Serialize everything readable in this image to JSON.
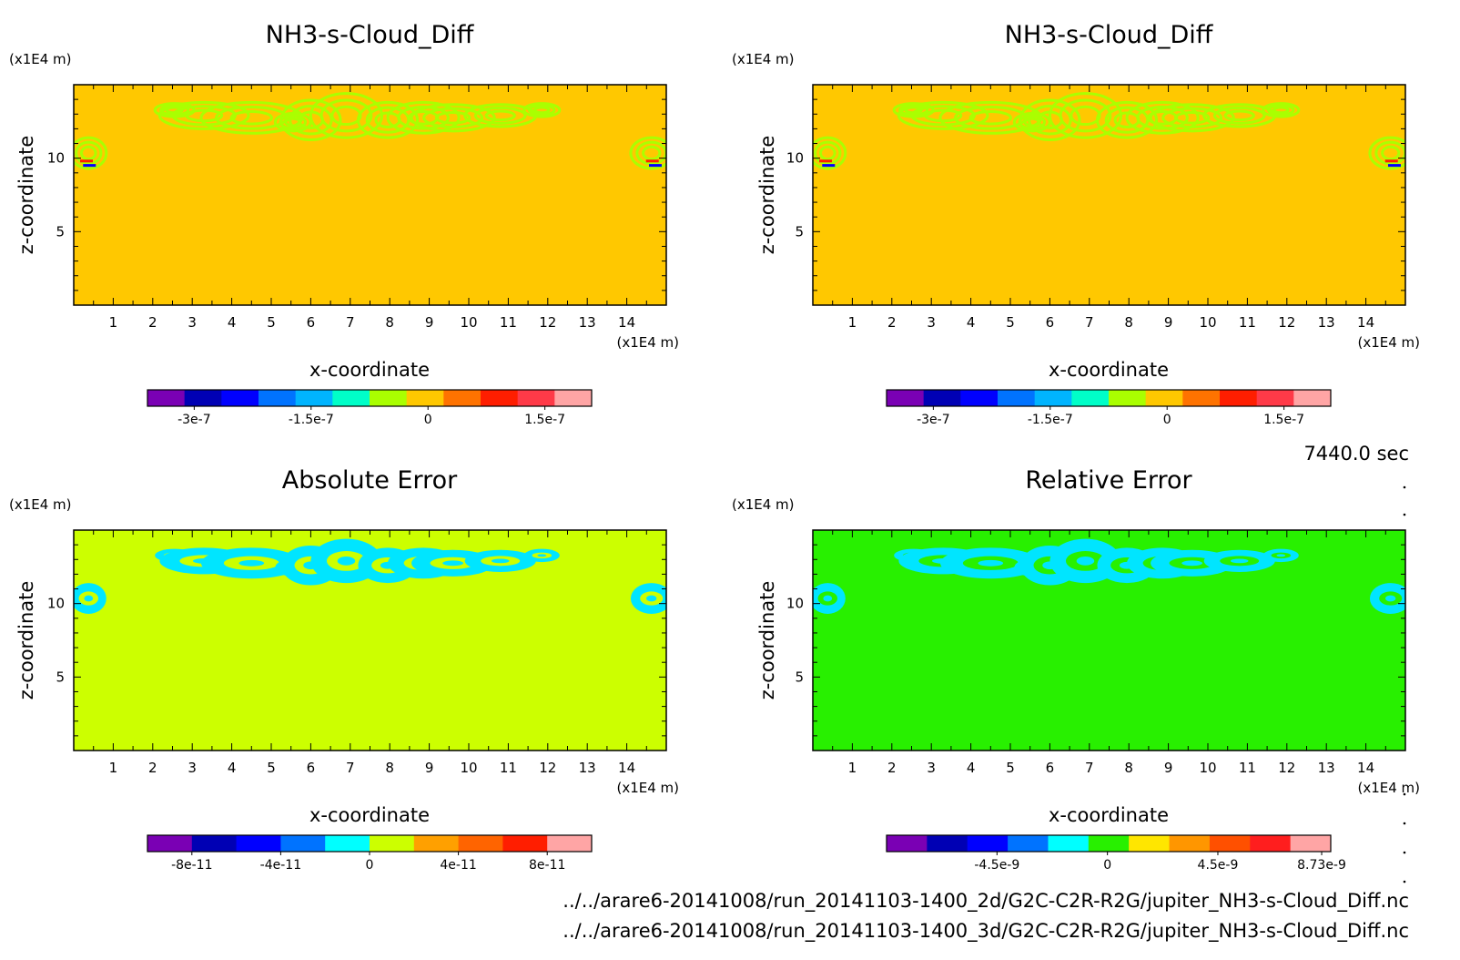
{
  "footer": {
    "path_2d": "../../arare6-20141008/run_20141103-1400_2d/G2C-C2R-R2G/jupiter_NH3-s-Cloud_Diff.nc",
    "path_3d": "../../arare6-20141008/run_20141103-1400_3d/G2C-C2R-R2G/jupiter_NH3-s-Cloud_Diff.nc"
  },
  "time_label": "7440.0 sec",
  "chart_data": [
    {
      "type": "heatmap",
      "title": "NH3-s-Cloud_Diff",
      "xlabel": "x-coordinate",
      "ylabel": "z-coordinate",
      "x_unit": "(x1E4 m)",
      "y_unit": "(x1E4 m)",
      "xlim": [
        0,
        15
      ],
      "ylim": [
        0,
        15
      ],
      "x_ticks": [
        1,
        2,
        3,
        4,
        5,
        6,
        7,
        8,
        9,
        10,
        11,
        12,
        13,
        14
      ],
      "y_ticks": [
        5,
        10
      ],
      "background_color": "#ffc800",
      "feature_color": "#aaff00",
      "colorbar": {
        "colors": [
          "#7a00b4",
          "#0000b4",
          "#0000ff",
          "#0073ff",
          "#00b4ff",
          "#00ffc8",
          "#aaff00",
          "#ffc800",
          "#ff7300",
          "#ff1e00",
          "#ff3a48",
          "#ffa5a5"
        ],
        "tick_labels": [
          "-3e-7",
          "-1.5e-7",
          "0",
          "1.5e-7"
        ],
        "tick_values": [
          -3e-07,
          -1.5e-07,
          0,
          1.5e-07
        ],
        "range": [
          -3.6e-07,
          2.1e-07
        ]
      }
    },
    {
      "type": "heatmap",
      "title": "NH3-s-Cloud_Diff",
      "xlabel": "x-coordinate",
      "ylabel": "z-coordinate",
      "x_unit": "(x1E4 m)",
      "y_unit": "(x1E4 m)",
      "xlim": [
        0,
        15
      ],
      "ylim": [
        0,
        15
      ],
      "x_ticks": [
        1,
        2,
        3,
        4,
        5,
        6,
        7,
        8,
        9,
        10,
        11,
        12,
        13,
        14
      ],
      "y_ticks": [
        5,
        10
      ],
      "background_color": "#ffc800",
      "feature_color": "#aaff00",
      "colorbar": {
        "colors": [
          "#7a00b4",
          "#0000b4",
          "#0000ff",
          "#0073ff",
          "#00b4ff",
          "#00ffc8",
          "#aaff00",
          "#ffc800",
          "#ff7300",
          "#ff1e00",
          "#ff3a48",
          "#ffa5a5"
        ],
        "tick_labels": [
          "-3e-7",
          "-1.5e-7",
          "0",
          "1.5e-7"
        ],
        "tick_values": [
          -3e-07,
          -1.5e-07,
          0,
          1.5e-07
        ],
        "range": [
          -3.6e-07,
          2.1e-07
        ]
      }
    },
    {
      "type": "heatmap",
      "title": "Absolute Error",
      "xlabel": "x-coordinate",
      "ylabel": "z-coordinate",
      "x_unit": "(x1E4 m)",
      "y_unit": "(x1E4 m)",
      "xlim": [
        0,
        15
      ],
      "ylim": [
        0,
        15
      ],
      "x_ticks": [
        1,
        2,
        3,
        4,
        5,
        6,
        7,
        8,
        9,
        10,
        11,
        12,
        13,
        14
      ],
      "y_ticks": [
        5,
        10
      ],
      "background_color": "#ccff00",
      "feature_color": "#00e5ff",
      "colorbar": {
        "colors": [
          "#7a00b4",
          "#0000b4",
          "#0000ff",
          "#0073ff",
          "#00ffff",
          "#ccff00",
          "#ffa000",
          "#ff6400",
          "#ff1e00",
          "#ffa5a5"
        ],
        "tick_labels": [
          "-8e-11",
          "-4e-11",
          "0",
          "4e-11",
          "8e-11"
        ],
        "tick_values": [
          -8e-11,
          -4e-11,
          0,
          4e-11,
          8e-11
        ],
        "range": [
          -1e-10,
          1e-10
        ]
      }
    },
    {
      "type": "heatmap",
      "title": "Relative Error",
      "xlabel": "x-coordinate",
      "ylabel": "z-coordinate",
      "x_unit": "(x1E4 m)",
      "y_unit": "(x1E4 m)",
      "xlim": [
        0,
        15
      ],
      "ylim": [
        0,
        15
      ],
      "x_ticks": [
        1,
        2,
        3,
        4,
        5,
        6,
        7,
        8,
        9,
        10,
        11,
        12,
        13,
        14
      ],
      "y_ticks": [
        5,
        10
      ],
      "background_color": "#28f000",
      "feature_color": "#00e5ff",
      "colorbar": {
        "colors": [
          "#7a00b4",
          "#0000b4",
          "#0000ff",
          "#0073ff",
          "#00ffff",
          "#28f000",
          "#ffe600",
          "#ff9600",
          "#ff5000",
          "#ff1e1e",
          "#ffa5a5"
        ],
        "tick_labels": [
          "-4.5e-9",
          "0",
          "4.5e-9",
          "8.73e-9"
        ],
        "tick_values": [
          -4.5e-09,
          0,
          4.5e-09,
          8.73e-09
        ],
        "range": [
          -9e-09,
          9.1e-09
        ]
      }
    }
  ]
}
